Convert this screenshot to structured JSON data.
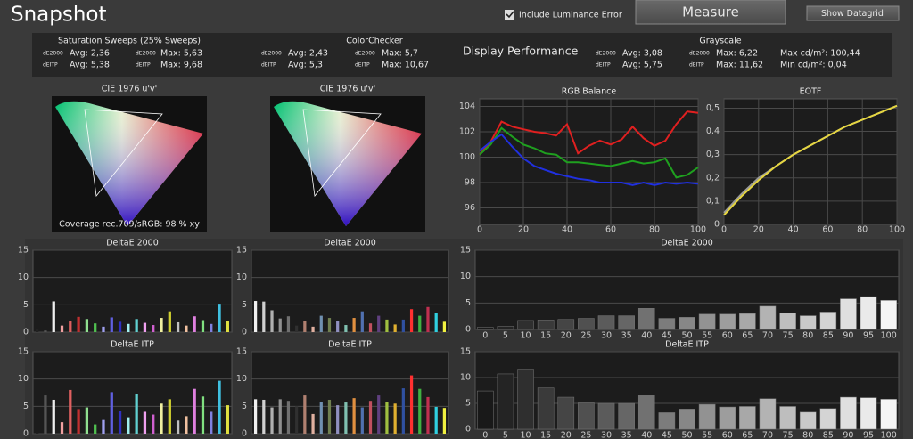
{
  "header": {
    "title": "Snapshot",
    "checkbox": "Include Luminance Error",
    "measure": "Measure",
    "datagrid": "Show Datagrid"
  },
  "stats": {
    "saturation": {
      "title": "Saturation Sweeps (25% Sweeps)",
      "rows": [
        [
          "dE2000",
          "Avg: 2,36",
          "dE2000",
          "Max: 5,63"
        ],
        [
          "dEITP",
          "Avg: 5,38",
          "dEITP",
          "Max: 9,68"
        ]
      ]
    },
    "colorchecker": {
      "title": "ColorChecker",
      "rows": [
        [
          "dE2000",
          "Avg: 2,43",
          "dE2000",
          "Max: 5,7"
        ],
        [
          "dEITP",
          "Avg: 5,3",
          "dEITP",
          "Max: 10,67"
        ]
      ]
    },
    "display_performance": "Display Performance",
    "grayscale": {
      "title": "Grayscale",
      "rows": [
        [
          "dE2000",
          "Avg: 3,08",
          "dE2000",
          "Max: 6,22",
          "Max cd/m²: 100,44"
        ],
        [
          "dEITP",
          "Avg: 5,75",
          "dEITP",
          "Max: 11,62",
          "Min cd/m²: 0,04"
        ]
      ]
    }
  },
  "chart_data": [
    {
      "type": "cie",
      "title": "CIE 1976 u'v'",
      "note": "Coverage rec.709/sRGB:  98 % xy"
    },
    {
      "type": "cie",
      "title": "CIE 1976 u'v'"
    },
    {
      "type": "line",
      "title": "RGB Balance",
      "x": [
        0,
        5,
        10,
        15,
        20,
        25,
        30,
        35,
        40,
        45,
        50,
        55,
        60,
        65,
        70,
        75,
        80,
        85,
        90,
        95,
        100
      ],
      "series": [
        {
          "color": "#e02020",
          "values": [
            100.2,
            101.2,
            102.8,
            102.4,
            102.2,
            102.0,
            101.9,
            101.7,
            102.6,
            100.3,
            100.9,
            101.3,
            101.0,
            101.4,
            102.4,
            101.5,
            100.9,
            101.3,
            102.6,
            103.6,
            103.5
          ]
        },
        {
          "color": "#1fa01f",
          "values": [
            100.2,
            101.0,
            102.3,
            101.6,
            101.0,
            100.7,
            100.3,
            100.2,
            99.6,
            99.6,
            99.5,
            99.4,
            99.3,
            99.5,
            99.7,
            99.5,
            99.6,
            99.9,
            98.4,
            98.6,
            99.2
          ]
        },
        {
          "color": "#2030e0",
          "values": [
            100.5,
            101.2,
            101.8,
            100.8,
            99.9,
            99.3,
            99.0,
            98.7,
            98.5,
            98.3,
            98.2,
            98.0,
            98.0,
            98.0,
            97.8,
            98.0,
            97.8,
            98.0,
            97.9,
            98.0,
            97.9
          ]
        }
      ],
      "xlim": [
        0,
        100
      ],
      "xticks": [
        0,
        20,
        40,
        60,
        80,
        100
      ],
      "ylim": [
        94.7,
        104.6
      ],
      "yticks": [
        96,
        98,
        100,
        102,
        104
      ],
      "grid": true
    },
    {
      "type": "line",
      "title": "EOTF",
      "x": [
        0,
        10,
        20,
        30,
        40,
        50,
        60,
        70,
        80,
        90,
        100
      ],
      "series": [
        {
          "color": "#9a9a9a",
          "values": [
            0.05,
            0.13,
            0.2,
            0.25,
            0.3,
            0.34,
            0.38,
            0.42,
            0.45,
            0.48,
            0.51
          ]
        },
        {
          "color": "#e6d640",
          "values": [
            0.04,
            0.12,
            0.19,
            0.25,
            0.3,
            0.34,
            0.38,
            0.42,
            0.45,
            0.48,
            0.51
          ]
        }
      ],
      "xlim": [
        0,
        100
      ],
      "xticks": [
        0,
        20,
        40,
        60,
        80,
        100
      ],
      "ylim": [
        0,
        0.54
      ],
      "yticks": [
        0,
        {
          "value": 0.1,
          "label": "0,1"
        },
        {
          "value": 0.2,
          "label": "0,2"
        },
        {
          "value": 0.3,
          "label": "0,3"
        },
        {
          "value": 0.4,
          "label": "0,4"
        },
        {
          "value": 0.5,
          "label": "0,5"
        }
      ],
      "grid": true
    },
    {
      "type": "bar",
      "title": "DeltaE 2000",
      "values": [
        0.5,
        0.3,
        5.63,
        1.2,
        2.1,
        2.8,
        2.4,
        1.6,
        1.0,
        2.7,
        1.9,
        1.5,
        2.4,
        1.7,
        1.3,
        2.6,
        3.8,
        1.8,
        1.2,
        2.9,
        2.2,
        1.5,
        5.2,
        2.0
      ],
      "colors": [
        "#222222",
        "#555555",
        "#eeeeee",
        "#f0a0a0",
        "#e06060",
        "#c03030",
        "#90e090",
        "#50c050",
        "#a0a0f0",
        "#6060e0",
        "#3030c0",
        "#a0f0f0",
        "#60d0d0",
        "#f0a0f0",
        "#d060d0",
        "#f0f0a0",
        "#d0d030",
        "#c0c0c0",
        "#f0c0a0",
        "#e080e0",
        "#80e080",
        "#8080e0",
        "#40c0e0",
        "#e0e040"
      ],
      "ylim": [
        0,
        15
      ],
      "yticks": [
        0,
        5,
        10,
        15
      ],
      "grid": true
    },
    {
      "type": "bar",
      "title": "DeltaE 2000",
      "values": [
        5.7,
        5.6,
        4.0,
        2.5,
        2.9,
        1.2,
        2.1,
        1.0,
        3.0,
        2.6,
        2.1,
        1.3,
        2.6,
        3.8,
        1.6,
        3.0,
        2.3,
        1.4,
        2.3,
        4.2,
        3.0,
        4.6,
        3.5,
        1.9
      ],
      "colors": [
        "#f0f0f0",
        "#d0d0d0",
        "#b0b0b0",
        "#909090",
        "#707070",
        "#303030",
        "#b08070",
        "#e0b0a0",
        "#7090b0",
        "#708050",
        "#9090c0",
        "#80c0b0",
        "#e09040",
        "#5070b0",
        "#c05060",
        "#604080",
        "#a0c040",
        "#e0b030",
        "#3050a0",
        "#ff3030",
        "#40b040",
        "#c03050",
        "#30d0e0",
        "#f0f040"
      ],
      "ylim": [
        0,
        15
      ],
      "yticks": [
        0,
        5,
        10,
        15
      ],
      "grid": true
    },
    {
      "type": "graybar",
      "title": "DeltaE 2000",
      "categories": [
        0,
        5,
        10,
        15,
        20,
        25,
        30,
        35,
        40,
        45,
        50,
        55,
        60,
        65,
        70,
        75,
        80,
        85,
        90,
        95,
        100
      ],
      "values": [
        0.4,
        0.6,
        1.7,
        1.8,
        1.9,
        2.1,
        2.6,
        2.6,
        4.0,
        2.1,
        2.3,
        2.9,
        2.9,
        3.0,
        4.4,
        3.1,
        2.6,
        3.3,
        5.8,
        6.22,
        5.5
      ],
      "ylim": [
        0,
        15
      ],
      "yticks": [
        0,
        5,
        10,
        15
      ],
      "grid": true
    },
    {
      "type": "bar",
      "title": "DeltaE ITP",
      "values": [
        0.2,
        7.0,
        6.2,
        2.1,
        8.0,
        4.5,
        4.8,
        1.7,
        2.5,
        7.6,
        4.2,
        3.0,
        7.2,
        4.0,
        3.5,
        5.5,
        6.3,
        2.4,
        3.2,
        8.2,
        6.8,
        4.0,
        9.68,
        5.2
      ],
      "colors": [
        "#222222",
        "#555555",
        "#eeeeee",
        "#f0a0a0",
        "#e06060",
        "#c03030",
        "#90e090",
        "#50c050",
        "#a0a0f0",
        "#6060e0",
        "#3030c0",
        "#a0f0f0",
        "#60d0d0",
        "#f0a0f0",
        "#d060d0",
        "#f0f0a0",
        "#d0d030",
        "#c0c0c0",
        "#f0c0a0",
        "#e080e0",
        "#80e080",
        "#8080e0",
        "#40c0e0",
        "#e0e040"
      ],
      "ylim": [
        0,
        15
      ],
      "yticks": [
        0,
        5,
        10,
        15
      ],
      "grid": true
    },
    {
      "type": "bar",
      "title": "DeltaE ITP",
      "values": [
        6.3,
        6.2,
        4.8,
        6.3,
        6.0,
        5.0,
        7.0,
        3.6,
        5.8,
        6.2,
        5.2,
        5.7,
        6.5,
        4.8,
        6.0,
        7.0,
        5.8,
        5.5,
        8.3,
        10.67,
        8.2,
        6.7,
        4.9,
        4.7
      ],
      "colors": [
        "#f0f0f0",
        "#d0d0d0",
        "#b0b0b0",
        "#909090",
        "#707070",
        "#303030",
        "#b08070",
        "#e0b0a0",
        "#7090b0",
        "#708050",
        "#9090c0",
        "#80c0b0",
        "#e09040",
        "#5070b0",
        "#c05060",
        "#604080",
        "#a0c040",
        "#e0b030",
        "#3050a0",
        "#ff3030",
        "#40b040",
        "#c03050",
        "#30d0e0",
        "#f0f040"
      ],
      "ylim": [
        0,
        15
      ],
      "yticks": [
        0,
        5,
        10,
        15
      ],
      "grid": true
    },
    {
      "type": "graybar",
      "title": "DeltaE ITP",
      "categories": [
        0,
        5,
        10,
        15,
        20,
        25,
        30,
        35,
        40,
        45,
        50,
        55,
        60,
        65,
        70,
        75,
        80,
        85,
        90,
        95,
        100
      ],
      "values": [
        7.4,
        10.7,
        11.62,
        8.0,
        6.2,
        5.1,
        5.0,
        5.0,
        6.5,
        3.2,
        3.9,
        4.8,
        4.3,
        4.4,
        5.9,
        4.4,
        3.3,
        4.0,
        6.2,
        6.1,
        5.8
      ],
      "ylim": [
        0,
        15
      ],
      "yticks": [
        0,
        5,
        10,
        15
      ],
      "grid": true
    }
  ]
}
